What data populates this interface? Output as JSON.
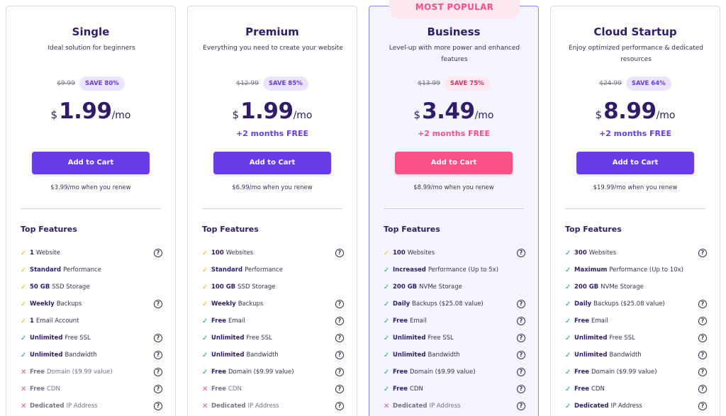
{
  "plans": [
    {
      "name": "Single",
      "description": "Ideal solution for beginners",
      "old_price": "$9.99",
      "save": "SAVE 80%",
      "currency": "$",
      "price": "1.99",
      "per": "/mo",
      "bonus": "",
      "cart_label": "Add to Cart",
      "renew": "$3.99/mo when you renew",
      "features_title": "Top Features",
      "features": [
        {
          "bold": "1",
          "rest": "Website",
          "status": "yes",
          "help": true
        },
        {
          "bold": "Standard",
          "rest": "Performance",
          "status": "yes",
          "help": false
        },
        {
          "bold": "50 GB",
          "rest": "SSD Storage",
          "status": "yes",
          "help": false
        },
        {
          "bold": "Weekly",
          "rest": "Backups",
          "status": "yes",
          "help": true
        },
        {
          "bold": "1",
          "rest": "Email Account",
          "status": "yes",
          "help": false
        },
        {
          "bold": "Unlimited",
          "rest": "Free SSL",
          "status": "yes-g",
          "help": true
        },
        {
          "bold": "Unlimited",
          "rest": "Bandwidth",
          "status": "yes-g",
          "help": true
        },
        {
          "bold": "Free",
          "rest": "Domain ($9.99 value)",
          "status": "no",
          "help": true
        },
        {
          "bold": "Free",
          "rest": "CDN",
          "status": "no",
          "help": true
        },
        {
          "bold": "Dedicated",
          "rest": "IP Address",
          "status": "no",
          "help": true
        }
      ]
    },
    {
      "name": "Premium",
      "description": "Everything you need to create your website",
      "old_price": "$12.99",
      "save": "SAVE 85%",
      "currency": "$",
      "price": "1.99",
      "per": "/mo",
      "bonus": "+2 months FREE",
      "cart_label": "Add to Cart",
      "renew": "$6.99/mo when you renew",
      "features_title": "Top Features",
      "features": [
        {
          "bold": "100",
          "rest": "Websites",
          "status": "yes",
          "help": true
        },
        {
          "bold": "Standard",
          "rest": "Performance",
          "status": "yes",
          "help": false
        },
        {
          "bold": "100 GB",
          "rest": "SSD Storage",
          "status": "yes",
          "help": false
        },
        {
          "bold": "Weekly",
          "rest": "Backups",
          "status": "yes",
          "help": true
        },
        {
          "bold": "Free",
          "rest": "Email",
          "status": "yes-g",
          "help": true
        },
        {
          "bold": "Unlimited",
          "rest": "Free SSL",
          "status": "yes-g",
          "help": true
        },
        {
          "bold": "Unlimited",
          "rest": "Bandwidth",
          "status": "yes-g",
          "help": true
        },
        {
          "bold": "Free",
          "rest": "Domain ($9.99 value)",
          "status": "yes-g",
          "help": true
        },
        {
          "bold": "Free",
          "rest": "CDN",
          "status": "no",
          "help": true
        },
        {
          "bold": "Dedicated",
          "rest": "IP Address",
          "status": "no",
          "help": true
        }
      ]
    },
    {
      "name": "Business",
      "description": "Level-up with more power and enhanced features",
      "badge": "MOST POPULAR",
      "old_price": "$13.99",
      "save": "SAVE 75%",
      "currency": "$",
      "price": "3.49",
      "per": "/mo",
      "bonus": "+2 months FREE",
      "cart_label": "Add to Cart",
      "renew": "$8.99/mo when you renew",
      "features_title": "Top Features",
      "features": [
        {
          "bold": "100",
          "rest": "Websites",
          "status": "yes",
          "help": true
        },
        {
          "bold": "Increased",
          "rest": "Performance (Up to 5x)",
          "status": "yes-g",
          "help": false
        },
        {
          "bold": "200 GB",
          "rest": "NVMe Storage",
          "status": "yes-g",
          "help": false
        },
        {
          "bold": "Daily",
          "rest": "Backups ($25.08 value)",
          "status": "yes-g",
          "help": true
        },
        {
          "bold": "Free",
          "rest": "Email",
          "status": "yes-g",
          "help": true
        },
        {
          "bold": "Unlimited",
          "rest": "Free SSL",
          "status": "yes-g",
          "help": true
        },
        {
          "bold": "Unlimited",
          "rest": "Bandwidth",
          "status": "yes-g",
          "help": true
        },
        {
          "bold": "Free",
          "rest": "Domain ($9.99 value)",
          "status": "yes-g",
          "help": true
        },
        {
          "bold": "Free",
          "rest": "CDN",
          "status": "yes-g",
          "help": true
        },
        {
          "bold": "Dedicated",
          "rest": "IP Address",
          "status": "no",
          "help": true
        }
      ]
    },
    {
      "name": "Cloud Startup",
      "description": "Enjoy optimized performance & dedicated resources",
      "old_price": "$24.99",
      "save": "SAVE 64%",
      "currency": "$",
      "price": "8.99",
      "per": "/mo",
      "bonus": "+2 months FREE",
      "cart_label": "Add to Cart",
      "renew": "$19.99/mo when you renew",
      "features_title": "Top Features",
      "features": [
        {
          "bold": "300",
          "rest": "Websites",
          "status": "yes-g",
          "help": true
        },
        {
          "bold": "Maximum",
          "rest": "Performance (Up to 10x)",
          "status": "yes-g",
          "help": false
        },
        {
          "bold": "200 GB",
          "rest": "NVMe Storage",
          "status": "yes-g",
          "help": false
        },
        {
          "bold": "Daily",
          "rest": "Backups ($25.08 value)",
          "status": "yes-g",
          "help": true
        },
        {
          "bold": "Free",
          "rest": "Email",
          "status": "yes-g",
          "help": true
        },
        {
          "bold": "Unlimited",
          "rest": "Free SSL",
          "status": "yes-g",
          "help": true
        },
        {
          "bold": "Unlimited",
          "rest": "Bandwidth",
          "status": "yes-g",
          "help": true
        },
        {
          "bold": "Free",
          "rest": "Domain ($9.99 value)",
          "status": "yes-g",
          "help": true
        },
        {
          "bold": "Free",
          "rest": "CDN",
          "status": "yes-g",
          "help": true
        },
        {
          "bold": "Dedicated",
          "rest": "IP Address",
          "status": "yes-g",
          "help": true
        }
      ]
    }
  ],
  "colors": {
    "primary": "#673de6",
    "accent_pink": "#fc5185",
    "check_yellow": "#ffb100",
    "check_green": "#00b090",
    "cross_red": "#fc5185",
    "heading": "#2f1c6a"
  },
  "icons": {
    "check": "check-icon",
    "cross": "cross-icon",
    "help": "help-circle-icon"
  },
  "glyphs": {
    "check": "✓",
    "cross": "✕",
    "help": "?"
  }
}
